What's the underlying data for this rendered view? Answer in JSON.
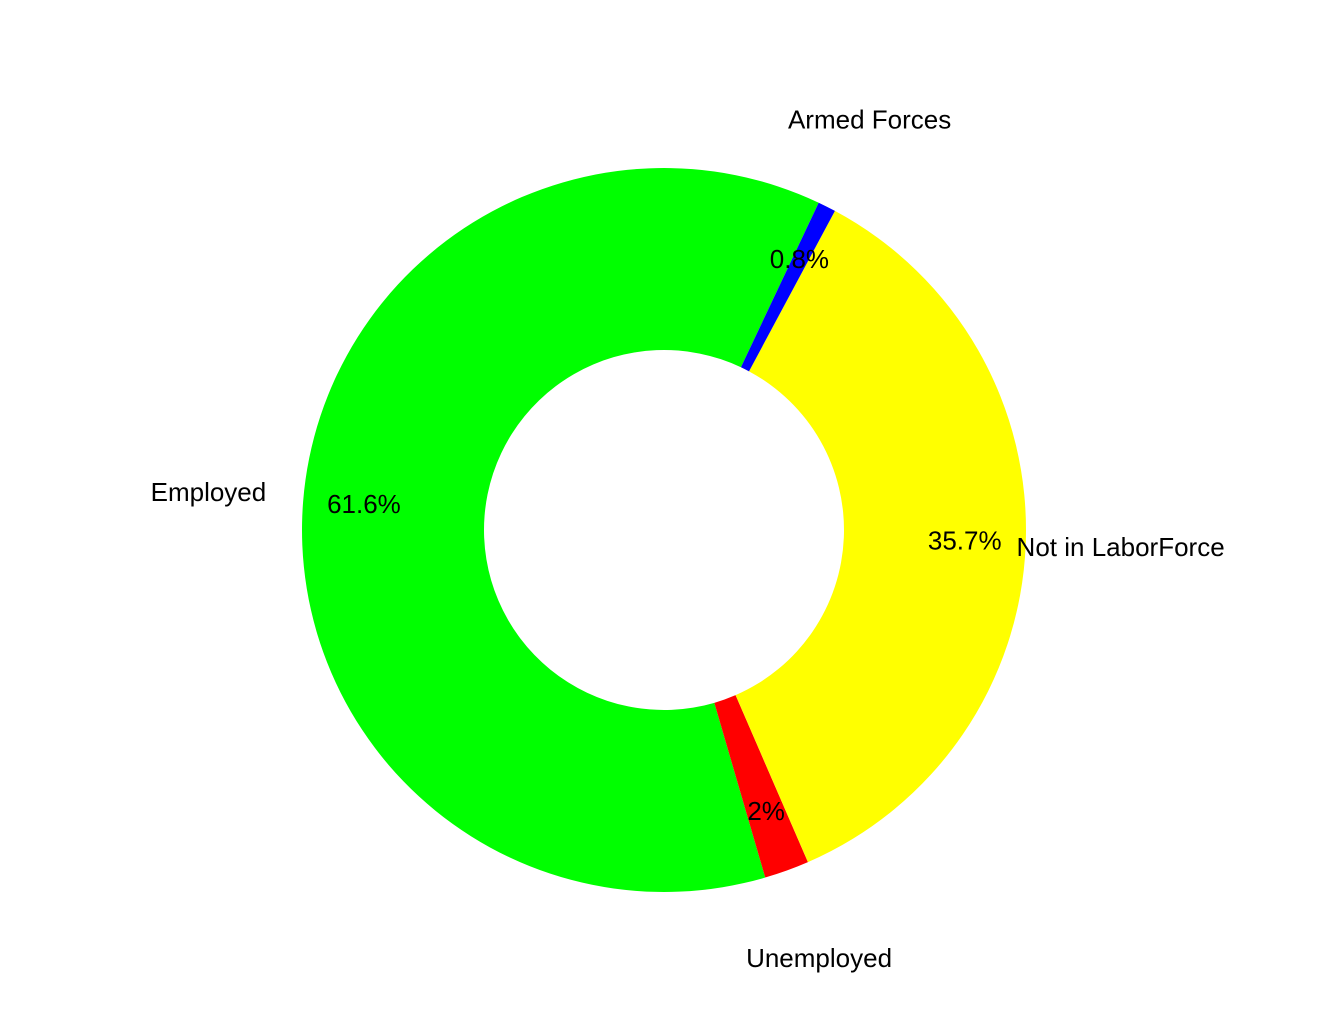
{
  "chart_data": {
    "type": "pie",
    "donut": true,
    "slices": [
      {
        "label": "Employed",
        "value": 61.6,
        "percent_label": "61.6%",
        "color": "#00FF00"
      },
      {
        "label": "Unemployed",
        "value": 2.0,
        "percent_label": "2%",
        "color": "#FF0000"
      },
      {
        "label": "Not in LaborForce",
        "value": 35.7,
        "percent_label": "35.7%",
        "color": "#FFFF00"
      },
      {
        "label": "Armed Forces",
        "value": 0.8,
        "percent_label": "0.8%",
        "color": "#0000FF"
      }
    ],
    "background": "#FFFFFF"
  }
}
